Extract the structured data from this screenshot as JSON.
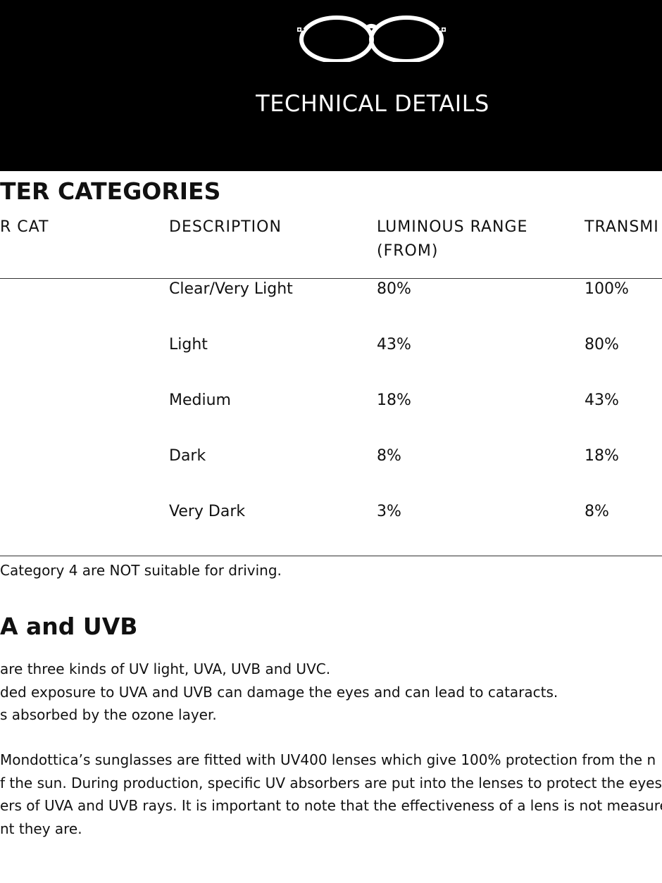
{
  "header": {
    "title": "TECHNICAL DETAILS",
    "logo_icon": "glasses-icon"
  },
  "filter_section": {
    "heading": "TER CATEGORIES",
    "columns": [
      "R CAT",
      "DESCRIPTION",
      "LUMINOUS RANGE (FROM)",
      "TRANSMI"
    ],
    "rows": [
      {
        "description": "Clear/Very Light",
        "from": "80%",
        "to": "100%"
      },
      {
        "description": "Light",
        "from": "43%",
        "to": "80%"
      },
      {
        "description": "Medium",
        "from": "18%",
        "to": "43%"
      },
      {
        "description": "Dark",
        "from": "8%",
        "to": "18%"
      },
      {
        "description": "Very Dark",
        "from": "3%",
        "to": "8%"
      }
    ],
    "note": "Category 4 are NOT suitable for driving."
  },
  "uv_section": {
    "heading": "A and UVB",
    "para1": [
      "are three kinds of UV light, UVA, UVB and UVC.",
      "ded exposure to UVA and UVB can damage the eyes and can lead to cataracts.",
      "s absorbed by the ozone layer."
    ],
    "para2": [
      "Mondottica’s sunglasses are fitted with UV400 lenses which give 100% protection from the n",
      "f the sun. During production, specific UV absorbers are put into the lenses to protect the eyes",
      "ers of UVA and UVB rays. It is important to note that the effectiveness of a lens is not measured",
      "nt they are."
    ]
  }
}
